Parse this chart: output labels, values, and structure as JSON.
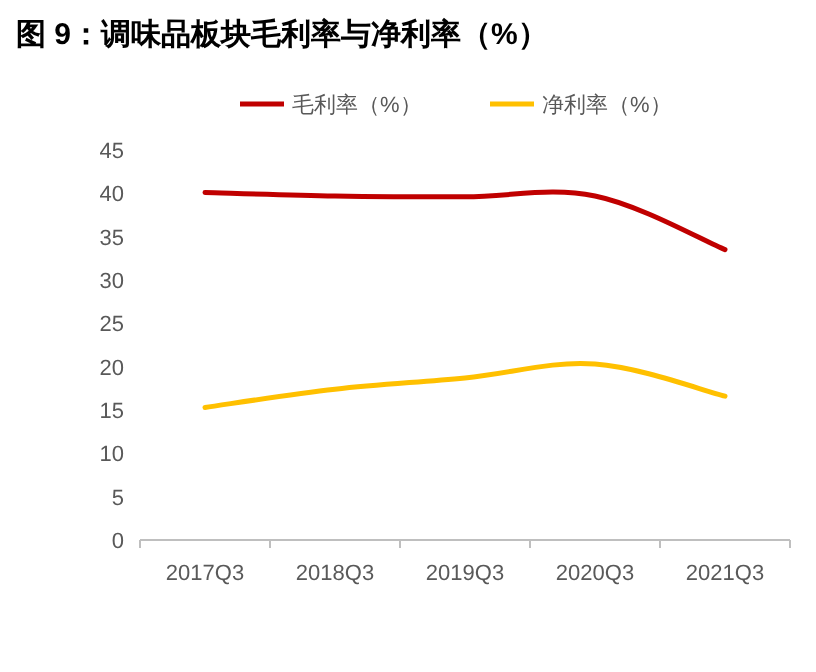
{
  "chart_data": {
    "type": "line",
    "title": "图 9：调味品板块毛利率与净利率（%）",
    "categories": [
      "2017Q3",
      "2018Q3",
      "2019Q3",
      "2020Q3",
      "2021Q3"
    ],
    "series": [
      {
        "name": "毛利率（%）",
        "color": "#c00000",
        "values": [
          40.1,
          39.7,
          39.6,
          39.7,
          33.5
        ]
      },
      {
        "name": "净利率（%）",
        "color": "#ffc000",
        "values": [
          15.3,
          17.4,
          18.7,
          20.3,
          16.6
        ]
      }
    ],
    "ylim": [
      0,
      45
    ],
    "yticks": [
      0,
      5,
      10,
      15,
      20,
      25,
      30,
      35,
      40,
      45
    ],
    "grid": false,
    "legend": "top",
    "marker": "none",
    "line_style": "solid"
  }
}
